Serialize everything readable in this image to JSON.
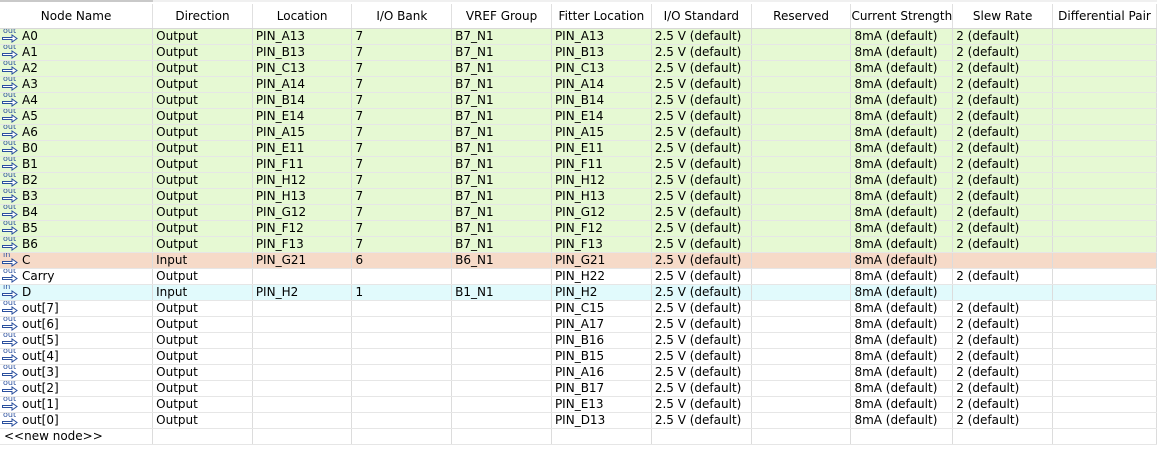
{
  "columns": [
    "Node Name",
    "Direction",
    "Location",
    "I/O Bank",
    "VREF Group",
    "Fitter Location",
    "I/O Standard",
    "Reserved",
    "Current Strength",
    "Slew Rate",
    "Differential Pair"
  ],
  "rows": [
    {
      "dir_icon": "out",
      "name": "A0",
      "direction": "Output",
      "location": "PIN_A13",
      "bank": "7",
      "vref": "B7_N1",
      "fitter": "PIN_A13",
      "std": "2.5 V (default)",
      "reserved": "",
      "current": "8mA (default)",
      "slew": "2 (default)",
      "diff": "",
      "color": "green"
    },
    {
      "dir_icon": "out",
      "name": "A1",
      "direction": "Output",
      "location": "PIN_B13",
      "bank": "7",
      "vref": "B7_N1",
      "fitter": "PIN_B13",
      "std": "2.5 V (default)",
      "reserved": "",
      "current": "8mA (default)",
      "slew": "2 (default)",
      "diff": "",
      "color": "green"
    },
    {
      "dir_icon": "out",
      "name": "A2",
      "direction": "Output",
      "location": "PIN_C13",
      "bank": "7",
      "vref": "B7_N1",
      "fitter": "PIN_C13",
      "std": "2.5 V (default)",
      "reserved": "",
      "current": "8mA (default)",
      "slew": "2 (default)",
      "diff": "",
      "color": "green"
    },
    {
      "dir_icon": "out",
      "name": "A3",
      "direction": "Output",
      "location": "PIN_A14",
      "bank": "7",
      "vref": "B7_N1",
      "fitter": "PIN_A14",
      "std": "2.5 V (default)",
      "reserved": "",
      "current": "8mA (default)",
      "slew": "2 (default)",
      "diff": "",
      "color": "green"
    },
    {
      "dir_icon": "out",
      "name": "A4",
      "direction": "Output",
      "location": "PIN_B14",
      "bank": "7",
      "vref": "B7_N1",
      "fitter": "PIN_B14",
      "std": "2.5 V (default)",
      "reserved": "",
      "current": "8mA (default)",
      "slew": "2 (default)",
      "diff": "",
      "color": "green"
    },
    {
      "dir_icon": "out",
      "name": "A5",
      "direction": "Output",
      "location": "PIN_E14",
      "bank": "7",
      "vref": "B7_N1",
      "fitter": "PIN_E14",
      "std": "2.5 V (default)",
      "reserved": "",
      "current": "8mA (default)",
      "slew": "2 (default)",
      "diff": "",
      "color": "green"
    },
    {
      "dir_icon": "out",
      "name": "A6",
      "direction": "Output",
      "location": "PIN_A15",
      "bank": "7",
      "vref": "B7_N1",
      "fitter": "PIN_A15",
      "std": "2.5 V (default)",
      "reserved": "",
      "current": "8mA (default)",
      "slew": "2 (default)",
      "diff": "",
      "color": "green"
    },
    {
      "dir_icon": "out",
      "name": "B0",
      "direction": "Output",
      "location": "PIN_E11",
      "bank": "7",
      "vref": "B7_N1",
      "fitter": "PIN_E11",
      "std": "2.5 V (default)",
      "reserved": "",
      "current": "8mA (default)",
      "slew": "2 (default)",
      "diff": "",
      "color": "green"
    },
    {
      "dir_icon": "out",
      "name": "B1",
      "direction": "Output",
      "location": "PIN_F11",
      "bank": "7",
      "vref": "B7_N1",
      "fitter": "PIN_F11",
      "std": "2.5 V (default)",
      "reserved": "",
      "current": "8mA (default)",
      "slew": "2 (default)",
      "diff": "",
      "color": "green"
    },
    {
      "dir_icon": "out",
      "name": "B2",
      "direction": "Output",
      "location": "PIN_H12",
      "bank": "7",
      "vref": "B7_N1",
      "fitter": "PIN_H12",
      "std": "2.5 V (default)",
      "reserved": "",
      "current": "8mA (default)",
      "slew": "2 (default)",
      "diff": "",
      "color": "green"
    },
    {
      "dir_icon": "out",
      "name": "B3",
      "direction": "Output",
      "location": "PIN_H13",
      "bank": "7",
      "vref": "B7_N1",
      "fitter": "PIN_H13",
      "std": "2.5 V (default)",
      "reserved": "",
      "current": "8mA (default)",
      "slew": "2 (default)",
      "diff": "",
      "color": "green"
    },
    {
      "dir_icon": "out",
      "name": "B4",
      "direction": "Output",
      "location": "PIN_G12",
      "bank": "7",
      "vref": "B7_N1",
      "fitter": "PIN_G12",
      "std": "2.5 V (default)",
      "reserved": "",
      "current": "8mA (default)",
      "slew": "2 (default)",
      "diff": "",
      "color": "green"
    },
    {
      "dir_icon": "out",
      "name": "B5",
      "direction": "Output",
      "location": "PIN_F12",
      "bank": "7",
      "vref": "B7_N1",
      "fitter": "PIN_F12",
      "std": "2.5 V (default)",
      "reserved": "",
      "current": "8mA (default)",
      "slew": "2 (default)",
      "diff": "",
      "color": "green"
    },
    {
      "dir_icon": "out",
      "name": "B6",
      "direction": "Output",
      "location": "PIN_F13",
      "bank": "7",
      "vref": "B7_N1",
      "fitter": "PIN_F13",
      "std": "2.5 V (default)",
      "reserved": "",
      "current": "8mA (default)",
      "slew": "2 (default)",
      "diff": "",
      "color": "green"
    },
    {
      "dir_icon": "in",
      "name": "C",
      "direction": "Input",
      "location": "PIN_G21",
      "bank": "6",
      "vref": "B6_N1",
      "fitter": "PIN_G21",
      "std": "2.5 V (default)",
      "reserved": "",
      "current": "8mA (default)",
      "slew": "",
      "diff": "",
      "color": "salmon"
    },
    {
      "dir_icon": "out",
      "name": "Carry",
      "direction": "Output",
      "location": "",
      "bank": "",
      "vref": "",
      "fitter": "PIN_H22",
      "std": "2.5 V (default)",
      "reserved": "",
      "current": "8mA (default)",
      "slew": "2 (default)",
      "diff": "",
      "color": "white"
    },
    {
      "dir_icon": "in",
      "name": "D",
      "direction": "Input",
      "location": "PIN_H2",
      "bank": "1",
      "vref": "B1_N1",
      "fitter": "PIN_H2",
      "std": "2.5 V (default)",
      "reserved": "",
      "current": "8mA (default)",
      "slew": "",
      "diff": "",
      "color": "cyan"
    },
    {
      "dir_icon": "out",
      "name": "out[7]",
      "direction": "Output",
      "location": "",
      "bank": "",
      "vref": "",
      "fitter": "PIN_C15",
      "std": "2.5 V (default)",
      "reserved": "",
      "current": "8mA (default)",
      "slew": "2 (default)",
      "diff": "",
      "color": "white"
    },
    {
      "dir_icon": "out",
      "name": "out[6]",
      "direction": "Output",
      "location": "",
      "bank": "",
      "vref": "",
      "fitter": "PIN_A17",
      "std": "2.5 V (default)",
      "reserved": "",
      "current": "8mA (default)",
      "slew": "2 (default)",
      "diff": "",
      "color": "white"
    },
    {
      "dir_icon": "out",
      "name": "out[5]",
      "direction": "Output",
      "location": "",
      "bank": "",
      "vref": "",
      "fitter": "PIN_B16",
      "std": "2.5 V (default)",
      "reserved": "",
      "current": "8mA (default)",
      "slew": "2 (default)",
      "diff": "",
      "color": "white"
    },
    {
      "dir_icon": "out",
      "name": "out[4]",
      "direction": "Output",
      "location": "",
      "bank": "",
      "vref": "",
      "fitter": "PIN_B15",
      "std": "2.5 V (default)",
      "reserved": "",
      "current": "8mA (default)",
      "slew": "2 (default)",
      "diff": "",
      "color": "white"
    },
    {
      "dir_icon": "out",
      "name": "out[3]",
      "direction": "Output",
      "location": "",
      "bank": "",
      "vref": "",
      "fitter": "PIN_A16",
      "std": "2.5 V (default)",
      "reserved": "",
      "current": "8mA (default)",
      "slew": "2 (default)",
      "diff": "",
      "color": "white"
    },
    {
      "dir_icon": "out",
      "name": "out[2]",
      "direction": "Output",
      "location": "",
      "bank": "",
      "vref": "",
      "fitter": "PIN_B17",
      "std": "2.5 V (default)",
      "reserved": "",
      "current": "8mA (default)",
      "slew": "2 (default)",
      "diff": "",
      "color": "white"
    },
    {
      "dir_icon": "out",
      "name": "out[1]",
      "direction": "Output",
      "location": "",
      "bank": "",
      "vref": "",
      "fitter": "PIN_E13",
      "std": "2.5 V (default)",
      "reserved": "",
      "current": "8mA (default)",
      "slew": "2 (default)",
      "diff": "",
      "color": "white"
    },
    {
      "dir_icon": "out",
      "name": "out[0]",
      "direction": "Output",
      "location": "",
      "bank": "",
      "vref": "",
      "fitter": "PIN_D13",
      "std": "2.5 V (default)",
      "reserved": "",
      "current": "8mA (default)",
      "slew": "2 (default)",
      "diff": "",
      "color": "white"
    }
  ],
  "new_node_label": "<<new node>>",
  "row_colors": {
    "green": "#e6f9d3",
    "salmon": "#f6dac8",
    "cyan": "#e1fafc",
    "white": "#ffffff"
  },
  "icon_names": {
    "out": "output-pin-icon",
    "in": "input-pin-icon"
  },
  "icon_text": {
    "out": "out",
    "in": "in"
  }
}
